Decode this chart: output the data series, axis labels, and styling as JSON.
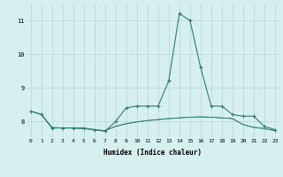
{
  "xlabel": "Humidex (Indice chaleur)",
  "x": [
    0,
    1,
    2,
    3,
    4,
    5,
    6,
    7,
    8,
    9,
    10,
    11,
    12,
    13,
    14,
    15,
    16,
    17,
    18,
    19,
    20,
    21,
    22,
    23
  ],
  "line1_y": [
    8.3,
    8.2,
    7.8,
    7.8,
    7.8,
    7.8,
    7.75,
    7.7,
    8.0,
    8.4,
    8.45,
    8.45,
    8.45,
    9.2,
    11.2,
    11.0,
    9.6,
    8.45,
    8.45,
    8.2,
    8.15,
    8.15,
    7.85,
    7.75
  ],
  "line2_y": [
    8.3,
    8.2,
    7.8,
    7.8,
    7.8,
    7.78,
    7.75,
    7.72,
    7.85,
    7.92,
    7.98,
    8.02,
    8.05,
    8.08,
    8.1,
    8.12,
    8.13,
    8.12,
    8.1,
    8.08,
    7.9,
    7.82,
    7.78,
    7.72
  ],
  "line3_y": [
    8.3,
    8.2,
    7.82,
    7.8,
    7.8,
    7.78,
    7.75,
    7.72,
    7.85,
    7.93,
    7.98,
    8.02,
    8.05,
    8.08,
    8.1,
    8.12,
    8.13,
    8.12,
    8.1,
    8.08,
    7.9,
    7.82,
    7.78,
    7.72
  ],
  "line_color": "#2e7d6e",
  "bg_color": "#d6f0ef",
  "grid_color": "#b8dcd8",
  "ylim": [
    7.5,
    11.5
  ],
  "yticks": [
    8,
    9,
    10,
    11
  ],
  "xticks": [
    0,
    1,
    2,
    3,
    4,
    5,
    6,
    7,
    8,
    9,
    10,
    11,
    12,
    13,
    14,
    15,
    16,
    17,
    18,
    19,
    20,
    21,
    22,
    23
  ],
  "tick_fontsize": 4.5,
  "xlabel_fontsize": 5.5
}
